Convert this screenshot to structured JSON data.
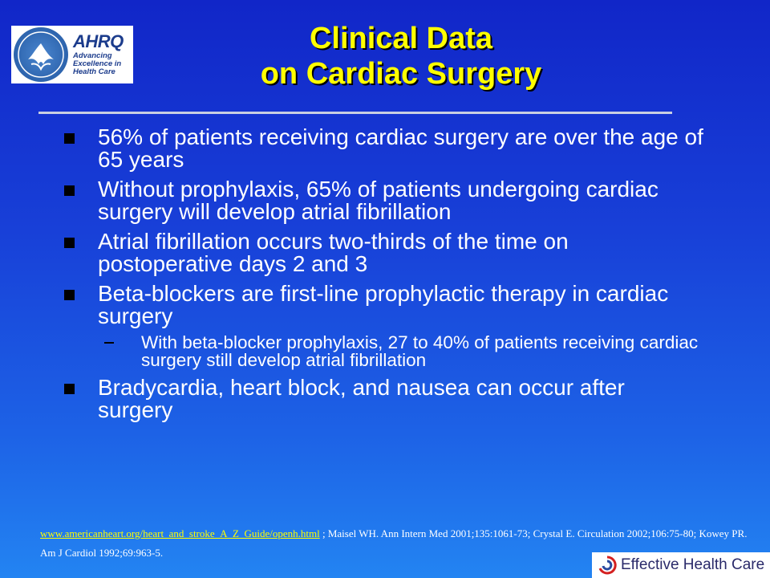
{
  "logos": {
    "hhs_seal_text": "DEPARTMENT OF HEALTH & HUMAN SERVICES",
    "ahrq_wordmark": "AHRQ",
    "ahrq_tagline": [
      "Advancing",
      "Excellence in",
      "Health Care"
    ],
    "effective_health_care": "Effective Health Care"
  },
  "title": {
    "line1": "Clinical Data",
    "line2": "on Cardiac Surgery"
  },
  "bullets": [
    {
      "text": "56% of patients receiving cardiac surgery are over the age of 65 years"
    },
    {
      "text": "Without prophylaxis, 65% of patients undergoing cardiac surgery will develop atrial fibrillation"
    },
    {
      "text": "Atrial fibrillation occurs two-thirds of the time on postoperative days 2 and 3"
    },
    {
      "text": "Beta-blockers are first-line prophylactic therapy in cardiac surgery",
      "sub": [
        "With beta-blocker prophylaxis, 27 to 40% of patients receiving cardiac surgery still develop atrial fibrillation"
      ]
    },
    {
      "text": "Bradycardia, heart block, and nausea can occur after surgery"
    }
  ],
  "citation": {
    "link": "www.americanheart.org/heart_and_stroke_A_Z_Guide/openh.html",
    "rest": " ; Maisel WH. Ann Intern Med 2001;135:1061-73; Crystal E. Circulation 2002;106:75-80; Kowey PR. Am J Cardiol 1992;69:963-5."
  },
  "colors": {
    "background_top": "#1126c8",
    "background_bottom": "#2384f2",
    "title": "#ffff00",
    "text": "#ffffff",
    "link": "#ffff00"
  }
}
